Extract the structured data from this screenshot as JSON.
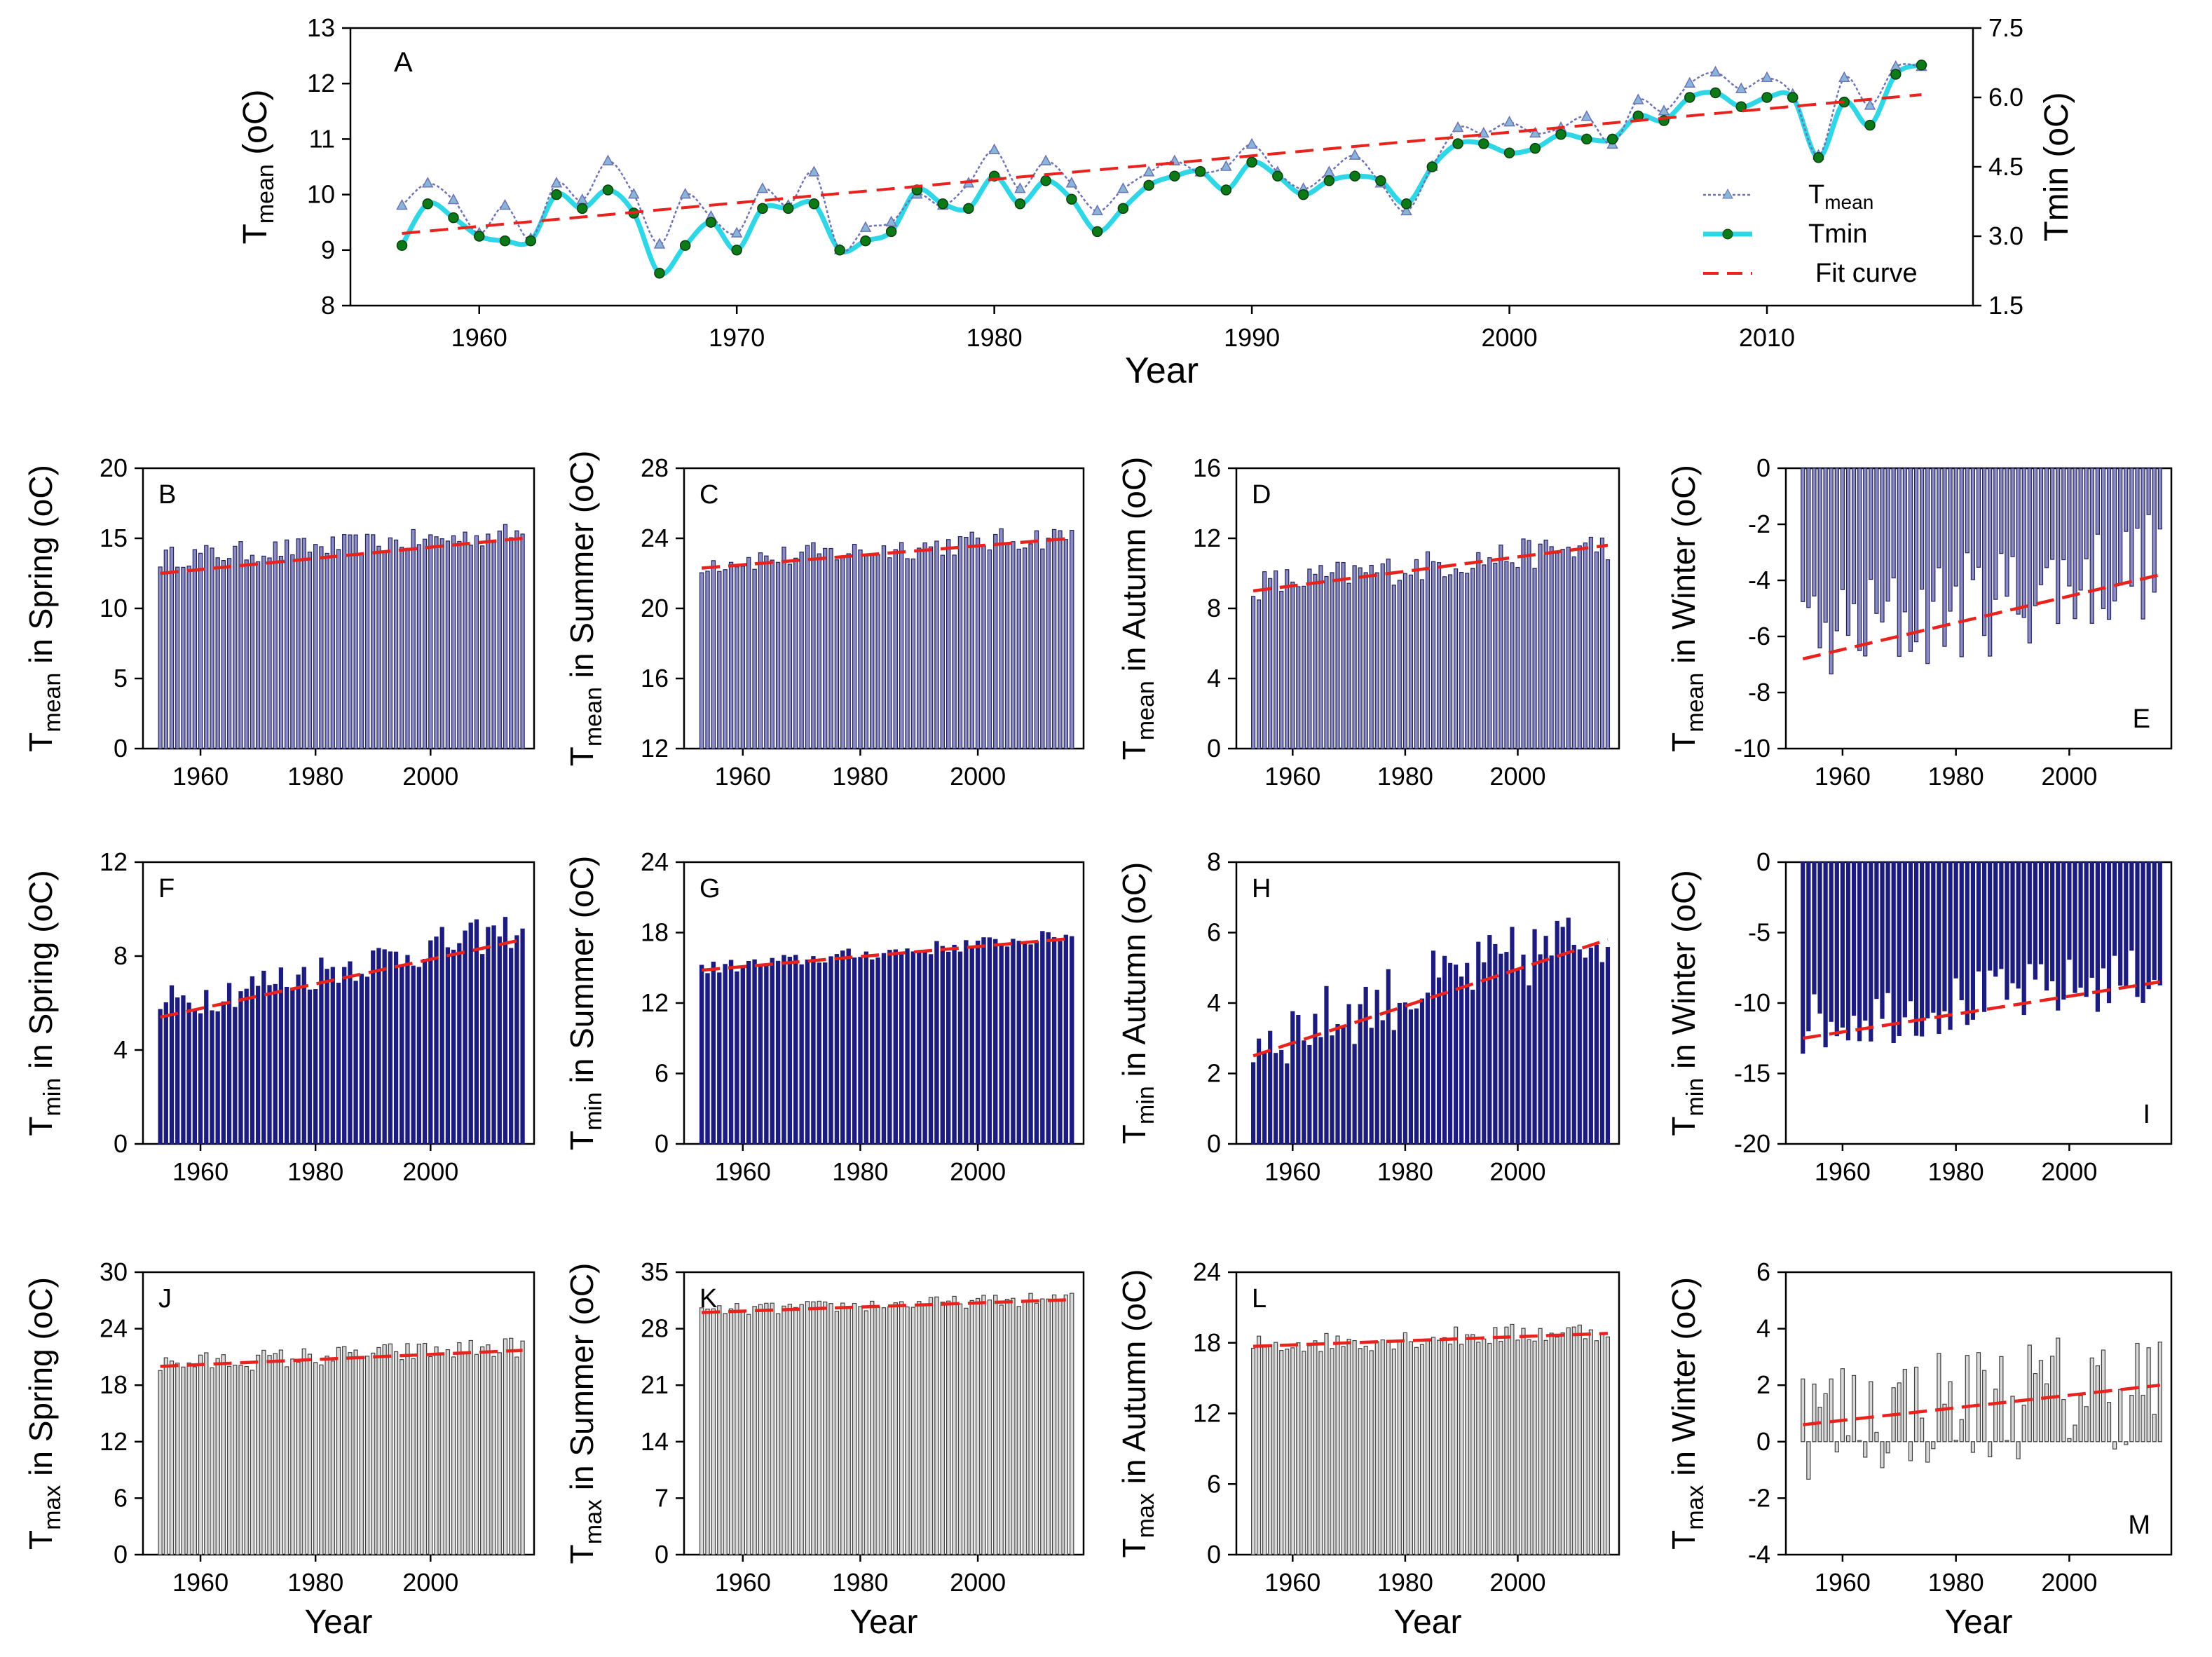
{
  "colors": {
    "axis": "#000000",
    "tmean_bar": "#8c8cc4",
    "tmean_bar_edge": "#23235f",
    "tmin_bar": "#1c1c80",
    "tmax_bar": "#d9d9d9",
    "tmax_bar_edge": "#404040",
    "fit": "#e8231e",
    "tmean_line": "#6e73b4",
    "tmean_marker": "#89b5d8",
    "tmin_line": "#2ed6e6",
    "tmin_marker": "#0c7a17"
  },
  "chart_data": [
    {
      "id": "A",
      "type": "line",
      "panel_label": "A",
      "xlabel": "Year",
      "ylabel": "T",
      "ylabel_sub": "mean",
      "ylabel_unit": "(oC)",
      "y2label": "Tmin (oC)",
      "xlim": [
        1955,
        2018
      ],
      "ylim": [
        8,
        13
      ],
      "y2lim": [
        1.5,
        7.5
      ],
      "xticks": [
        1960,
        1970,
        1980,
        1990,
        2000,
        2010
      ],
      "yticks": [
        8,
        9,
        10,
        11,
        12,
        13
      ],
      "y2ticks": [
        "1.5",
        "3.0",
        "4.5",
        "6.0",
        "7.5"
      ],
      "legend": [
        "Tmean",
        "Tmin",
        "Fit curve"
      ],
      "years": [
        1957,
        1958,
        1959,
        1960,
        1961,
        1962,
        1963,
        1964,
        1965,
        1966,
        1967,
        1968,
        1969,
        1970,
        1971,
        1972,
        1973,
        1974,
        1975,
        1976,
        1977,
        1978,
        1979,
        1980,
        1981,
        1982,
        1983,
        1984,
        1985,
        1986,
        1987,
        1988,
        1989,
        1990,
        1991,
        1992,
        1993,
        1994,
        1995,
        1996,
        1997,
        1998,
        1999,
        2000,
        2001,
        2002,
        2003,
        2004,
        2005,
        2006,
        2007,
        2008,
        2009,
        2010,
        2011,
        2012,
        2013,
        2014,
        2015,
        2016
      ],
      "series": [
        {
          "name": "Tmean",
          "axis": "left",
          "values": [
            9.8,
            10.2,
            9.9,
            9.3,
            9.8,
            9.2,
            10.2,
            9.9,
            10.6,
            10.0,
            9.1,
            10.0,
            9.6,
            9.3,
            10.1,
            9.8,
            10.4,
            9.0,
            9.4,
            9.5,
            10.0,
            9.8,
            10.2,
            10.8,
            10.1,
            10.6,
            10.2,
            9.7,
            10.1,
            10.4,
            10.6,
            10.4,
            10.5,
            10.9,
            10.4,
            10.1,
            10.4,
            10.7,
            10.2,
            9.7,
            10.5,
            11.2,
            11.1,
            11.3,
            11.1,
            11.2,
            11.4,
            10.9,
            11.7,
            11.5,
            12.0,
            12.2,
            11.9,
            12.1,
            11.8,
            10.7,
            12.1,
            11.6,
            12.3,
            12.3
          ]
        },
        {
          "name": "Tmin",
          "axis": "right",
          "values": [
            2.8,
            3.7,
            3.4,
            3.0,
            2.9,
            2.9,
            3.9,
            3.6,
            4.0,
            3.5,
            2.2,
            2.8,
            3.3,
            2.7,
            3.6,
            3.6,
            3.7,
            2.7,
            2.9,
            3.1,
            4.0,
            3.7,
            3.6,
            4.3,
            3.7,
            4.2,
            3.8,
            3.1,
            3.6,
            4.1,
            4.3,
            4.4,
            4.0,
            4.6,
            4.3,
            3.9,
            4.2,
            4.3,
            4.2,
            3.7,
            4.5,
            5.0,
            5.0,
            4.8,
            4.9,
            5.2,
            5.1,
            5.1,
            5.6,
            5.5,
            6.0,
            6.1,
            5.8,
            6.0,
            6.0,
            4.7,
            5.9,
            5.4,
            6.5,
            6.7
          ]
        },
        {
          "name": "Fit curve",
          "axis": "left",
          "values_at_ends": [
            9.3,
            11.8
          ]
        }
      ]
    },
    {
      "id": "B",
      "panel_label": "B",
      "type": "bar",
      "style": "tmean",
      "ylabel": "T",
      "ylabel_sub": "mean",
      "ylabel_rest": " in Spring (oC)",
      "ylim": [
        0,
        20
      ],
      "yticks": [
        0,
        5,
        10,
        15,
        20
      ],
      "xticks": [
        1960,
        1980,
        2000
      ],
      "xlabel": "",
      "fit": [
        12.5,
        15.0
      ],
      "base": 13.6,
      "slope": 0.028,
      "amp": 0.8,
      "values": null
    },
    {
      "id": "C",
      "panel_label": "C",
      "type": "bar",
      "style": "tmean",
      "ylabel": "T",
      "ylabel_sub": "mean",
      "ylabel_rest": " in Summer (oC)",
      "ylim": [
        12,
        28
      ],
      "yticks": [
        12,
        16,
        20,
        24,
        28
      ],
      "xticks": [
        1960,
        1980,
        2000
      ],
      "xlabel": "",
      "fit": [
        22.3,
        24.0
      ],
      "base": 22.6,
      "slope": 0.025,
      "amp": 0.7
    },
    {
      "id": "D",
      "panel_label": "D",
      "type": "bar",
      "style": "tmean",
      "ylabel": "T",
      "ylabel_sub": "mean",
      "ylabel_rest": " in Autumn (oC)",
      "ylim": [
        0,
        16
      ],
      "yticks": [
        0,
        4,
        8,
        12,
        16
      ],
      "xticks": [
        1960,
        1980,
        2000
      ],
      "xlabel": "",
      "fit": [
        9.0,
        11.6
      ],
      "base": 9.3,
      "slope": 0.037,
      "amp": 0.9
    },
    {
      "id": "E",
      "panel_label": "E",
      "type": "bar",
      "style": "tmean_neg",
      "ylabel": "T",
      "ylabel_sub": "mean",
      "ylabel_rest": " in Winter (oC)",
      "ylim": [
        -10,
        0
      ],
      "yticks": [
        -10,
        -8,
        -6,
        -4,
        -2,
        0
      ],
      "xticks": [
        1960,
        1980,
        2000
      ],
      "xlabel": "",
      "fit": [
        -6.8,
        -3.8
      ],
      "base": -6.2,
      "slope": 0.045,
      "amp": 2.0
    },
    {
      "id": "F",
      "panel_label": "F",
      "type": "bar",
      "style": "tmin",
      "ylabel": "T",
      "ylabel_sub": "min",
      "ylabel_rest": " in Spring (oC)",
      "ylim": [
        0,
        12
      ],
      "yticks": [
        0,
        4,
        8,
        12
      ],
      "xticks": [
        1960,
        1980,
        2000
      ],
      "xlabel": "",
      "fit": [
        5.4,
        8.7
      ],
      "base": 5.9,
      "slope": 0.052,
      "amp": 0.8
    },
    {
      "id": "G",
      "panel_label": "G",
      "type": "bar",
      "style": "tmin",
      "ylabel": "T",
      "ylabel_sub": "min",
      "ylabel_rest": " in Summer (oC)",
      "ylim": [
        0,
        24
      ],
      "yticks": [
        0,
        6,
        12,
        18,
        24
      ],
      "xticks": [
        1960,
        1980,
        2000
      ],
      "xlabel": "",
      "fit": [
        14.8,
        17.5
      ],
      "base": 14.9,
      "slope": 0.045,
      "amp": 0.6
    },
    {
      "id": "H",
      "panel_label": "H",
      "type": "bar",
      "style": "tmin",
      "ylabel": "T",
      "ylabel_sub": "min",
      "ylabel_rest": " in Autumn (oC)",
      "ylim": [
        0,
        8
      ],
      "yticks": [
        0,
        2,
        4,
        6,
        8
      ],
      "xticks": [
        1960,
        1980,
        2000
      ],
      "xlabel": "",
      "fit": [
        2.5,
        5.8
      ],
      "base": 2.9,
      "slope": 0.05,
      "amp": 1.0
    },
    {
      "id": "I",
      "panel_label": "I",
      "type": "bar",
      "style": "tmin_neg",
      "ylabel": "T",
      "ylabel_sub": "min",
      "ylabel_rest": " in Winter (oC)",
      "ylim": [
        -20,
        0
      ],
      "yticks": [
        -20,
        -15,
        -10,
        -5,
        0
      ],
      "xticks": [
        1960,
        1980,
        2000
      ],
      "xlabel": "",
      "fit": [
        -12.5,
        -8.5
      ],
      "base": -11.5,
      "slope": 0.055,
      "amp": 2.2
    },
    {
      "id": "J",
      "panel_label": "J",
      "type": "bar",
      "style": "tmax",
      "ylabel": "T",
      "ylabel_sub": "max",
      "ylabel_rest": " in Spring (oC)",
      "ylim": [
        0,
        30
      ],
      "yticks": [
        0,
        6,
        12,
        18,
        24,
        30
      ],
      "xticks": [
        1960,
        1980,
        2000
      ],
      "xlabel": "Year",
      "fit": [
        20.0,
        21.7
      ],
      "base": 20.2,
      "slope": 0.03,
      "amp": 1.1
    },
    {
      "id": "K",
      "panel_label": "K",
      "type": "bar",
      "style": "tmax",
      "ylabel": "T",
      "ylabel_sub": "max",
      "ylabel_rest": " in Summer (oC)",
      "ylim": [
        0,
        35
      ],
      "yticks": [
        0,
        7,
        14,
        21,
        28,
        35
      ],
      "xticks": [
        1960,
        1980,
        2000
      ],
      "xlabel": "Year",
      "fit": [
        30.0,
        31.6
      ],
      "base": 30.2,
      "slope": 0.025,
      "amp": 0.8
    },
    {
      "id": "L",
      "panel_label": "L",
      "type": "bar",
      "style": "tmax",
      "ylabel": "T",
      "ylabel_sub": "max",
      "ylabel_rest": " in Autumn (oC)",
      "ylim": [
        0,
        24
      ],
      "yticks": [
        0,
        6,
        12,
        18,
        24
      ],
      "xticks": [
        1960,
        1980,
        2000
      ],
      "xlabel": "Year",
      "fit": [
        17.7,
        18.8
      ],
      "base": 17.8,
      "slope": 0.02,
      "amp": 0.9
    },
    {
      "id": "M",
      "panel_label": "M",
      "type": "bar",
      "style": "tmax_signed",
      "ylabel": "T",
      "ylabel_sub": "max",
      "ylabel_rest": " in Winter (oC)",
      "ylim": [
        -4,
        6
      ],
      "yticks": [
        -4,
        -2,
        0,
        2,
        4,
        6
      ],
      "xticks": [
        1960,
        1980,
        2000
      ],
      "xlabel": "Year",
      "fit": [
        0.6,
        2.0
      ],
      "base": 0.8,
      "slope": 0.02,
      "amp": 2.2
    }
  ]
}
